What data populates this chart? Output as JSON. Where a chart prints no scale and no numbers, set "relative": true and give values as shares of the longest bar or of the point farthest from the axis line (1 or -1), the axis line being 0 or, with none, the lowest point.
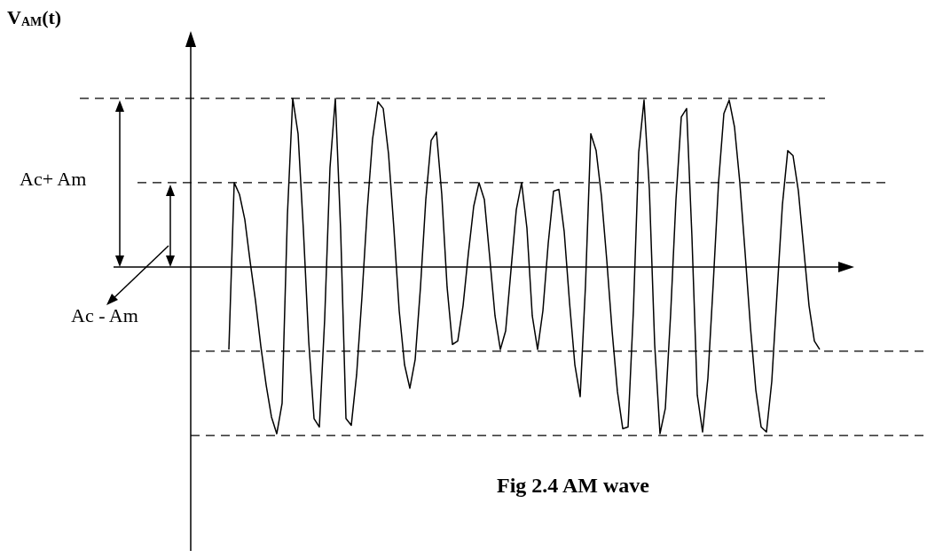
{
  "chart_data": {
    "type": "line",
    "relative": true,
    "title": "Fig 2.4 AM wave",
    "annotations": [
      "V$_{AM}$(t)",
      "Ac+ Am",
      "Ac - Am"
    ],
    "grid": false,
    "line_style": "solid",
    "categories": [
      null,
      null,
      null,
      null,
      null,
      null,
      null,
      null,
      null,
      null,
      null,
      null,
      null,
      null,
      null,
      null,
      null,
      null,
      null,
      null,
      null,
      null,
      null,
      null,
      null,
      null,
      null,
      null,
      null,
      null,
      null,
      null,
      null,
      null,
      null,
      null,
      null,
      null,
      null,
      null,
      null,
      null,
      null,
      null,
      null,
      null,
      null,
      null,
      null,
      null,
      null,
      null,
      null,
      null,
      null,
      null,
      null,
      null,
      null,
      null,
      null,
      null,
      null,
      null,
      null,
      null,
      null,
      null,
      null,
      null,
      null,
      null,
      null,
      null,
      null,
      null,
      null,
      null,
      null,
      null,
      null,
      null,
      null,
      null,
      null,
      null,
      null,
      null,
      null,
      null,
      null,
      null,
      null,
      null,
      null,
      null,
      null,
      null,
      null,
      null,
      null,
      null,
      null,
      null,
      null,
      null,
      null,
      null,
      null,
      null,
      null,
      null
    ],
    "series": [
      {
        "color": "#000000",
        "values": [
          -0.49,
          0.5,
          0.43,
          0.28,
          0.03,
          -0.2,
          -0.47,
          -0.7,
          -0.89,
          -0.99,
          -0.81,
          0.31,
          1,
          0.79,
          0.22,
          -0.44,
          -0.9,
          -0.95,
          -0.31,
          0.59,
          1,
          0.22,
          -0.9,
          -0.94,
          -0.64,
          -0.18,
          0.34,
          0.76,
          0.98,
          0.94,
          0.67,
          0.23,
          -0.26,
          -0.58,
          -0.72,
          -0.55,
          -0.12,
          0.4,
          0.75,
          0.8,
          0.43,
          -0.12,
          -0.46,
          -0.44,
          -0.23,
          0.08,
          0.36,
          0.5,
          0.4,
          0.06,
          -0.29,
          -0.49,
          -0.38,
          -0.02,
          0.34,
          0.5,
          0.23,
          -0.29,
          -0.49,
          -0.26,
          0.14,
          0.45,
          0.46,
          0.21,
          -0.21,
          -0.58,
          -0.77,
          -0.11,
          0.79,
          0.69,
          0.42,
          0.04,
          -0.38,
          -0.74,
          -0.96,
          -0.95,
          -0.26,
          0.68,
          0.99,
          0.46,
          -0.46,
          -0.99,
          -0.84,
          -0.28,
          0.4,
          0.89,
          0.94,
          0.18,
          -0.76,
          -0.98,
          -0.66,
          -0.1,
          0.5,
          0.91,
          0.99,
          0.83,
          0.5,
          0.08,
          -0.36,
          -0.73,
          -0.95,
          -0.98,
          -0.68,
          -0.15,
          0.37,
          0.69,
          0.66,
          0.45,
          0.11,
          -0.23,
          -0.44,
          -0.49
        ]
      }
    ],
    "ref_lines": [
      {
        "axis": "y",
        "value": 1,
        "line_style": "dashed"
      },
      {
        "axis": "y",
        "value": 0.5,
        "line_style": "dashed"
      },
      {
        "axis": "y",
        "value": -0.5,
        "line_style": "dashed"
      },
      {
        "axis": "y",
        "value": -1,
        "line_style": "dashed"
      }
    ]
  }
}
